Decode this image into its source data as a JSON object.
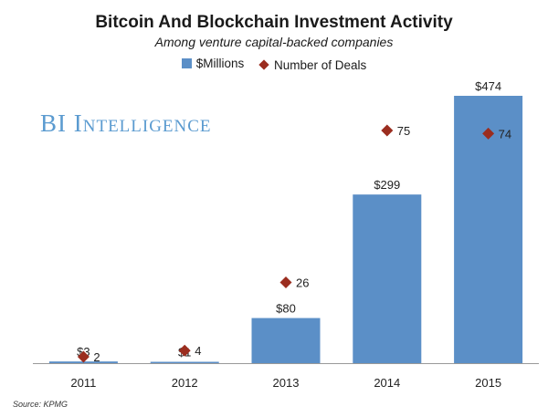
{
  "chart_data": {
    "type": "bar",
    "title": "Bitcoin And Blockchain Investment Activity",
    "subtitle": "Among venture capital-backed companies",
    "categories": [
      "2011",
      "2012",
      "2013",
      "2014",
      "2015"
    ],
    "series": [
      {
        "name": "$Millions",
        "type": "bar",
        "values": [
          3,
          1,
          80,
          299,
          474
        ],
        "labels": [
          "$3",
          "$1",
          "$80",
          "$299",
          "$474"
        ],
        "color": "#5b8fc7"
      },
      {
        "name": "Number of Deals",
        "type": "scatter",
        "marker": "diamond",
        "values": [
          2,
          4,
          26,
          75,
          74
        ],
        "labels": [
          "2",
          "4",
          "26",
          "75",
          "74"
        ],
        "color": "#9b2d1f"
      }
    ],
    "legend": "top-center",
    "grid": false
  },
  "watermark": "BI Intelligence",
  "source": "Source: KPMG"
}
